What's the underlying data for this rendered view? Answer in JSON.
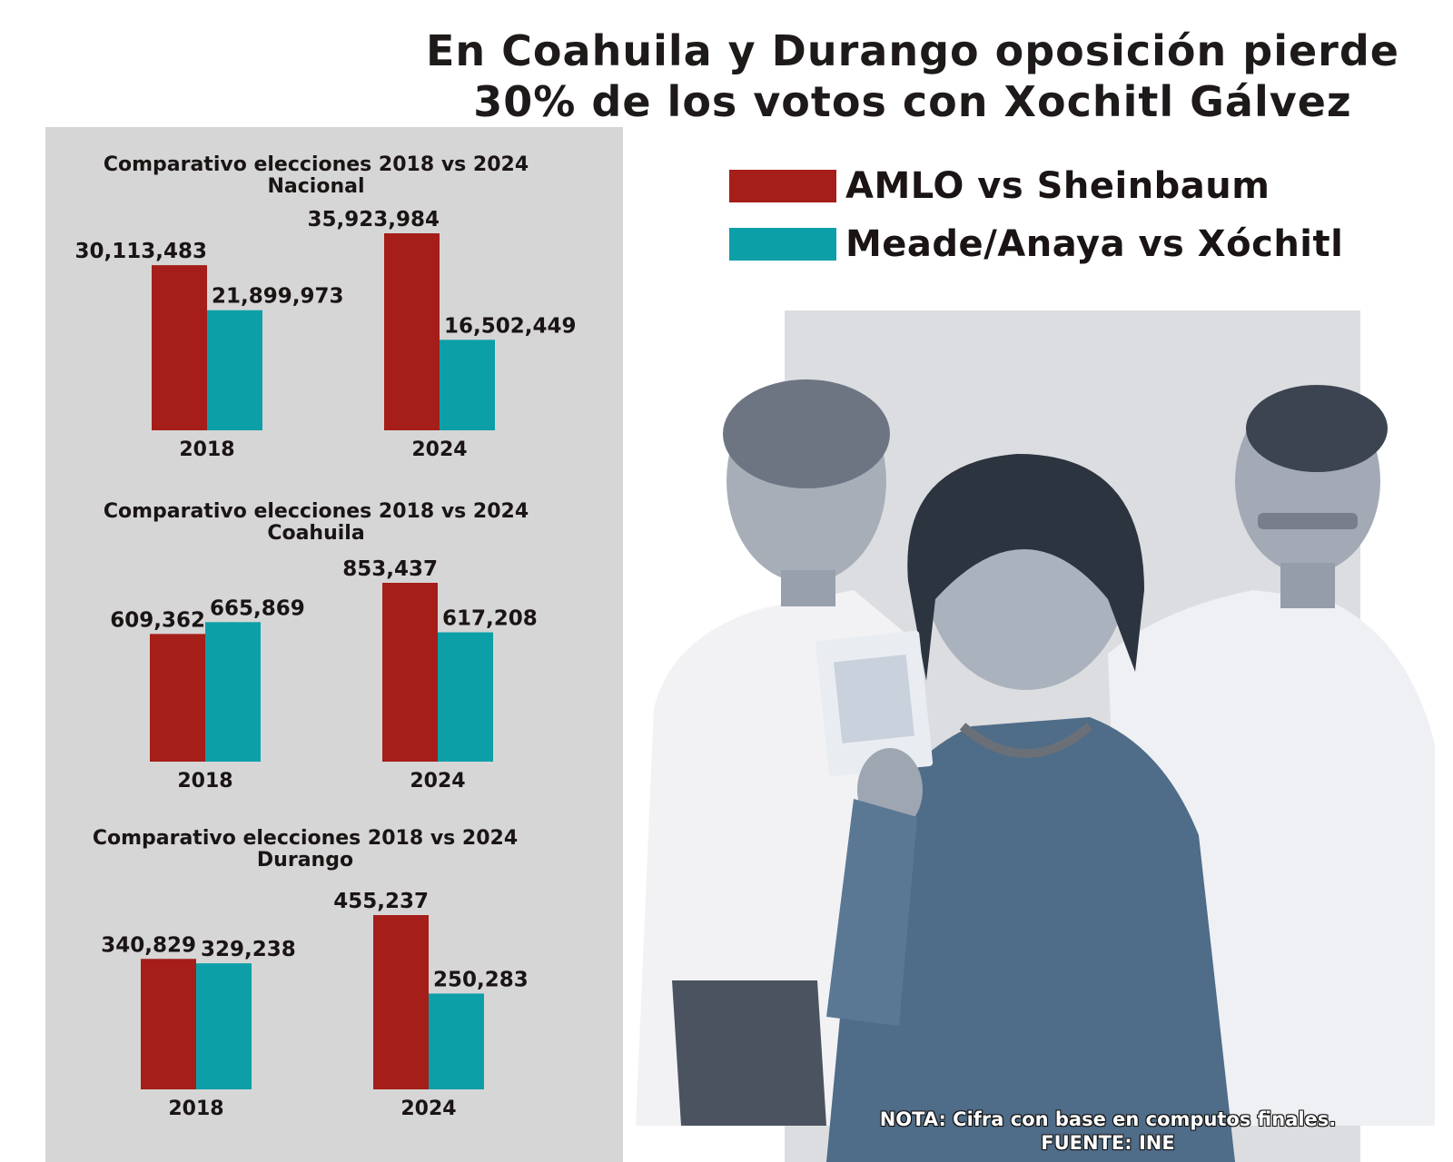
{
  "title": {
    "line1": "En Coahuila y Durango oposición pierde",
    "line2": "30% de los votos con Xochitl Gálvez"
  },
  "legend": [
    {
      "label": "AMLO vs Sheinbaum",
      "color": "#a51e19"
    },
    {
      "label": "Meade/Anaya vs Xóchitl",
      "color": "#0d9fa8"
    }
  ],
  "colors": {
    "series_a": "#a51e19",
    "series_b": "#0d9fa8",
    "panel_bg": "#d6d6d6"
  },
  "chart_data": [
    {
      "type": "bar",
      "title": "Comparativo elecciones 2018 vs 2024",
      "subtitle": "Nacional",
      "categories": [
        "2018",
        "2024"
      ],
      "series": [
        {
          "name": "AMLO vs Sheinbaum",
          "values": [
            30113483,
            35923984
          ],
          "labels": [
            "30,113,483",
            "35,923,984"
          ]
        },
        {
          "name": "Meade/Anaya vs Xóchitl",
          "values": [
            21899973,
            16502449
          ],
          "labels": [
            "21,899,973",
            "16,502,449"
          ]
        }
      ]
    },
    {
      "type": "bar",
      "title": "Comparativo elecciones 2018 vs 2024",
      "subtitle": "Coahuila",
      "categories": [
        "2018",
        "2024"
      ],
      "series": [
        {
          "name": "AMLO vs Sheinbaum",
          "values": [
            609362,
            853437
          ],
          "labels": [
            "609,362",
            "853,437"
          ]
        },
        {
          "name": "Meade/Anaya vs Xóchitl",
          "values": [
            665869,
            617208
          ],
          "labels": [
            "665,869",
            "617,208"
          ]
        }
      ]
    },
    {
      "type": "bar",
      "title": "Comparativo elecciones 2018 vs 2024",
      "subtitle": "Durango",
      "categories": [
        "2018",
        "2024"
      ],
      "series": [
        {
          "name": "AMLO vs Sheinbaum",
          "values": [
            340829,
            455237
          ],
          "labels": [
            "340,829",
            "455,237"
          ]
        },
        {
          "name": "Meade/Anaya vs Xóchitl",
          "values": [
            329238,
            250283
          ],
          "labels": [
            "329,238",
            "250,283"
          ]
        }
      ]
    }
  ],
  "note": {
    "line1": "NOTA: Cifra con base en computos finales.",
    "line2": "FUENTE: INE"
  }
}
